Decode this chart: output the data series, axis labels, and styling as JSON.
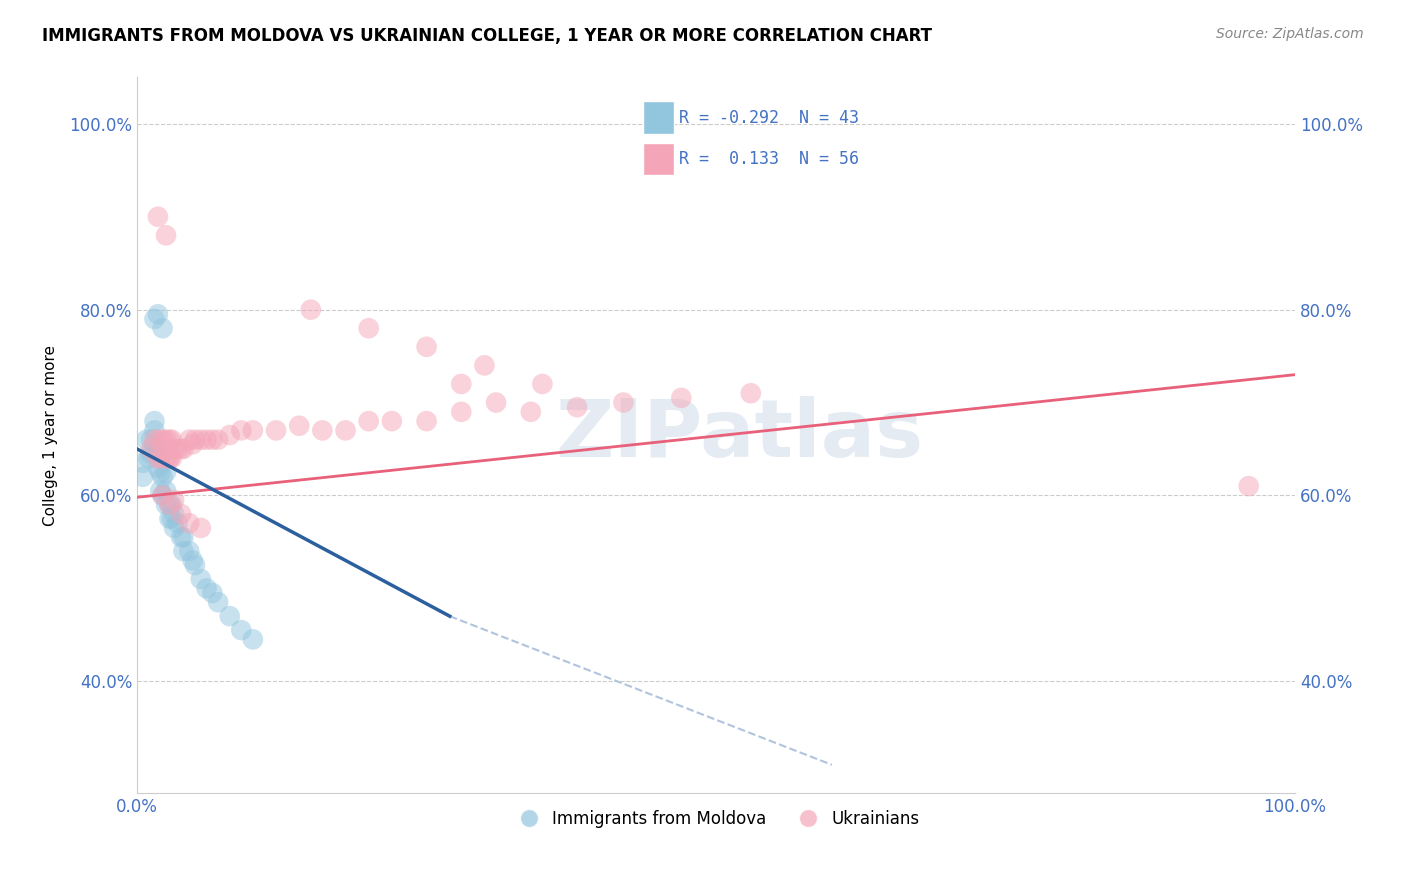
{
  "title": "IMMIGRANTS FROM MOLDOVA VS UKRAINIAN COLLEGE, 1 YEAR OR MORE CORRELATION CHART",
  "source": "Source: ZipAtlas.com",
  "ylabel": "College, 1 year or more",
  "xlim": [
    0.0,
    1.0
  ],
  "ylim": [
    0.28,
    1.05
  ],
  "xtick_positions": [
    0.0,
    1.0
  ],
  "xtick_labels": [
    "0.0%",
    "100.0%"
  ],
  "ytick_positions": [
    0.4,
    0.6,
    0.8,
    1.0
  ],
  "ytick_labels": [
    "40.0%",
    "60.0%",
    "80.0%",
    "100.0%"
  ],
  "legend_R_blue": "-0.292",
  "legend_N_blue": "43",
  "legend_R_pink": "0.133",
  "legend_N_pink": "56",
  "blue_color": "#92c5de",
  "pink_color": "#f4a6b8",
  "blue_line_color": "#2c5f9e",
  "pink_line_color": "#e8607a",
  "dashed_line_color": "#b0c4de",
  "watermark": "ZIPatlas",
  "blue_scatter_x": [
    0.005,
    0.005,
    0.008,
    0.01,
    0.012,
    0.012,
    0.015,
    0.015,
    0.015,
    0.018,
    0.018,
    0.02,
    0.02,
    0.02,
    0.022,
    0.022,
    0.022,
    0.025,
    0.025,
    0.025,
    0.028,
    0.028,
    0.03,
    0.03,
    0.032,
    0.032,
    0.035,
    0.038,
    0.04,
    0.04,
    0.045,
    0.048,
    0.05,
    0.055,
    0.06,
    0.065,
    0.07,
    0.08,
    0.09,
    0.1,
    0.015,
    0.018,
    0.022
  ],
  "blue_scatter_y": [
    0.635,
    0.62,
    0.66,
    0.64,
    0.66,
    0.645,
    0.67,
    0.655,
    0.68,
    0.65,
    0.63,
    0.64,
    0.625,
    0.605,
    0.645,
    0.62,
    0.6,
    0.625,
    0.605,
    0.59,
    0.59,
    0.575,
    0.59,
    0.575,
    0.58,
    0.565,
    0.57,
    0.555,
    0.555,
    0.54,
    0.54,
    0.53,
    0.525,
    0.51,
    0.5,
    0.495,
    0.485,
    0.47,
    0.455,
    0.445,
    0.79,
    0.795,
    0.78
  ],
  "pink_scatter_x": [
    0.012,
    0.015,
    0.018,
    0.02,
    0.02,
    0.022,
    0.025,
    0.025,
    0.028,
    0.028,
    0.028,
    0.03,
    0.03,
    0.032,
    0.035,
    0.038,
    0.04,
    0.045,
    0.048,
    0.05,
    0.055,
    0.06,
    0.065,
    0.07,
    0.08,
    0.09,
    0.1,
    0.12,
    0.14,
    0.16,
    0.18,
    0.2,
    0.22,
    0.25,
    0.28,
    0.31,
    0.34,
    0.38,
    0.42,
    0.47,
    0.53,
    0.28,
    0.15,
    0.2,
    0.25,
    0.3,
    0.35,
    0.018,
    0.025,
    0.96,
    0.022,
    0.028,
    0.032,
    0.038,
    0.045,
    0.055
  ],
  "pink_scatter_y": [
    0.65,
    0.66,
    0.64,
    0.66,
    0.64,
    0.66,
    0.64,
    0.66,
    0.64,
    0.66,
    0.64,
    0.66,
    0.64,
    0.65,
    0.65,
    0.65,
    0.65,
    0.66,
    0.655,
    0.66,
    0.66,
    0.66,
    0.66,
    0.66,
    0.665,
    0.67,
    0.67,
    0.67,
    0.675,
    0.67,
    0.67,
    0.68,
    0.68,
    0.68,
    0.69,
    0.7,
    0.69,
    0.695,
    0.7,
    0.705,
    0.71,
    0.72,
    0.8,
    0.78,
    0.76,
    0.74,
    0.72,
    0.9,
    0.88,
    0.61,
    0.6,
    0.59,
    0.595,
    0.58,
    0.57,
    0.565
  ],
  "blue_line_x_start": 0.0,
  "blue_line_x_end": 0.27,
  "blue_line_y_start": 0.65,
  "blue_line_y_end": 0.47,
  "dashed_line_x_start": 0.27,
  "dashed_line_x_end": 0.6,
  "dashed_line_y_start": 0.47,
  "dashed_line_y_end": 0.31,
  "pink_line_x_start": 0.0,
  "pink_line_x_end": 1.0,
  "pink_line_y_start": 0.598,
  "pink_line_y_end": 0.73
}
